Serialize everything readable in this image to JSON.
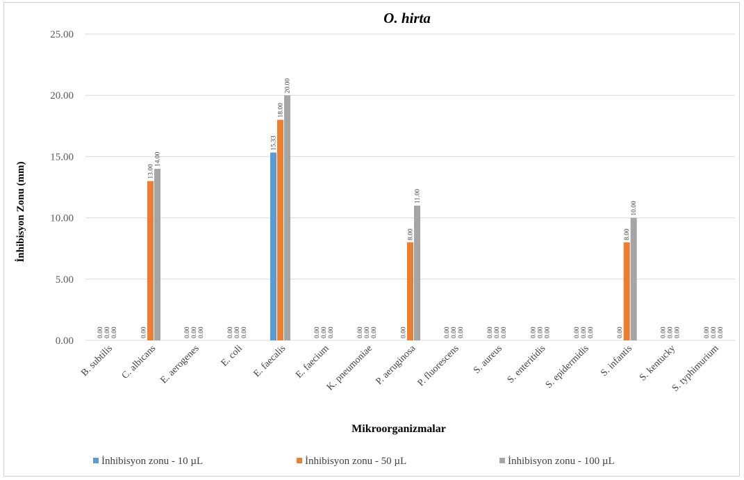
{
  "chart_data": {
    "type": "bar",
    "title": "O. hirta",
    "xlabel": "Mikroorganizmalar",
    "ylabel": "İnhibisyon Zonu (mm)",
    "ylim": [
      0,
      25
    ],
    "yticks": [
      "0.00",
      "5.00",
      "10.00",
      "15.00",
      "20.00",
      "25.00"
    ],
    "grid": true,
    "legend_position": "bottom",
    "categories": [
      "B. subtilis",
      "C. albicans",
      "E. aerogenes",
      "E. coli",
      "E. faecalis",
      "E. faecium",
      "K. pneumoniae",
      "P. aeruginosa",
      "P. fluorescens",
      "S. aureus",
      "S. enteritidis",
      "S. epidermidis",
      "S. infantis",
      "S. kentucky",
      "S. typhimurium"
    ],
    "series": [
      {
        "name": "İnhibisyon zonu  - 10 µL",
        "color": "#5B9BD5",
        "values": [
          0,
          0,
          0,
          0,
          15.33,
          0,
          0,
          0,
          0,
          0,
          0,
          0,
          0,
          0,
          0
        ],
        "labels": [
          "0.00",
          "0.00",
          "0.00",
          "0.00",
          "15.33",
          "0.00",
          "0.00",
          "0.00",
          "0.00",
          "0.00",
          "0.00",
          "0.00",
          "0.00",
          "0.00",
          "0.00"
        ]
      },
      {
        "name": "İnhibisyon zonu  - 50 µL",
        "color": "#ED7D31",
        "values": [
          0,
          13,
          0,
          0,
          18,
          0,
          0,
          8,
          0,
          0,
          0,
          0,
          8,
          0,
          0
        ],
        "labels": [
          "0.00",
          "13.00",
          "0.00",
          "0.00",
          "18.00",
          "0.00",
          "0.00",
          "8.00",
          "0.00",
          "0.00",
          "0.00",
          "0.00",
          "8.00",
          "0.00",
          "0.00"
        ]
      },
      {
        "name": "İnhibisyon zonu  - 100 µL",
        "color": "#A5A5A5",
        "values": [
          0,
          14,
          0,
          0,
          20,
          0,
          0,
          11,
          0,
          0,
          0,
          0,
          10,
          0,
          0
        ],
        "labels": [
          "0.00",
          "14.00",
          "0.00",
          "0.00",
          "20.00",
          "0.00",
          "0.00",
          "11.00",
          "0.00",
          "0.00",
          "0.00",
          "0.00",
          "10.00",
          "0.00",
          "0.00"
        ]
      }
    ]
  }
}
